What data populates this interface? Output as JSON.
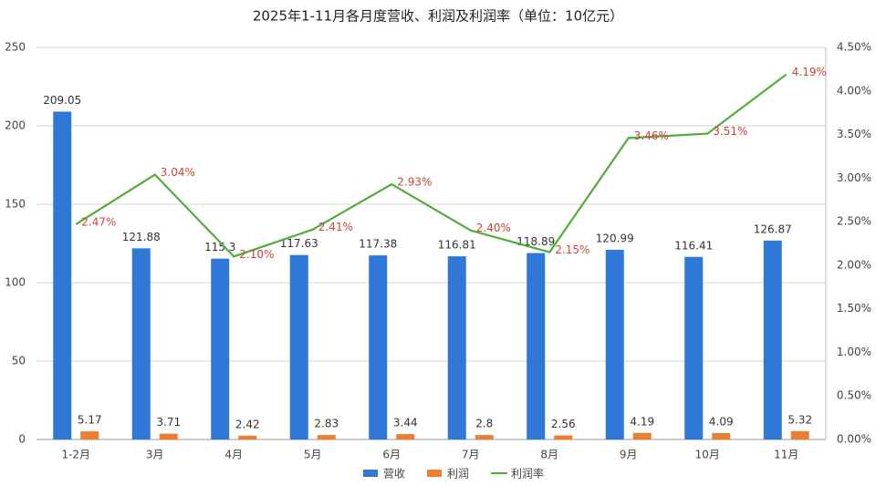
{
  "chart_data": {
    "type": "bar",
    "title": "2025年1-11月各月度营收、利润及利润率（单位：10亿元）",
    "categories": [
      "1-2月",
      "3月",
      "4月",
      "5月",
      "6月",
      "7月",
      "8月",
      "9月",
      "10月",
      "11月"
    ],
    "series": [
      {
        "name": "营收",
        "color": "#2f78d8",
        "values": [
          209.05,
          121.88,
          115.3,
          117.63,
          117.38,
          116.81,
          118.89,
          120.99,
          116.41,
          126.87
        ]
      },
      {
        "name": "利润",
        "color": "#ed7d31",
        "values": [
          5.17,
          3.71,
          2.42,
          2.83,
          3.44,
          2.8,
          2.56,
          4.19,
          4.09,
          5.32
        ]
      },
      {
        "name": "利润率",
        "color": "#4fae3a",
        "type": "line",
        "axis": "y2",
        "values": [
          2.47,
          3.04,
          2.1,
          2.41,
          2.93,
          2.4,
          2.15,
          3.46,
          3.51,
          4.19
        ],
        "value_labels": [
          "2.47%",
          "3.04%",
          "2.10%",
          "2.41%",
          "2.93%",
          "2.40%",
          "2.15%",
          "3.46%",
          "3.51%",
          "4.19%"
        ]
      }
    ],
    "ylim": [
      0,
      250
    ],
    "yticks": [
      0,
      50,
      100,
      150,
      200,
      250
    ],
    "y2lim": [
      0,
      4.5
    ],
    "y2ticks": [
      {
        "value": 0,
        "label": "0.00%"
      },
      {
        "value": 0.5,
        "label": "0.50%"
      },
      {
        "value": 1,
        "label": "1.00%"
      },
      {
        "value": 1.5,
        "label": "1.50%"
      },
      {
        "value": 2,
        "label": "2.00%"
      },
      {
        "value": 2.5,
        "label": "2.50%"
      },
      {
        "value": 3,
        "label": "3.00%"
      },
      {
        "value": 3.5,
        "label": "3.50%"
      },
      {
        "value": 4,
        "label": "4.00%"
      },
      {
        "value": 4.5,
        "label": "4.50%"
      }
    ],
    "grid": true,
    "legend": "bottom"
  }
}
